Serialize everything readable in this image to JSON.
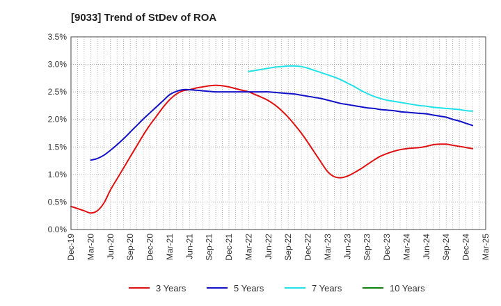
{
  "chart_data": {
    "type": "line",
    "title": "[9033]  Trend of StDev of ROA",
    "xlabel": "",
    "ylabel": "",
    "x_ticks": [
      "Dec-19",
      "Mar-20",
      "Jun-20",
      "Sep-20",
      "Dec-20",
      "Mar-21",
      "Jun-21",
      "Sep-21",
      "Dec-21",
      "Mar-22",
      "Jun-22",
      "Sep-22",
      "Dec-22",
      "Mar-23",
      "Jun-23",
      "Sep-23",
      "Dec-23",
      "Mar-24",
      "Jun-24",
      "Sep-24",
      "Dec-24",
      "Mar-25"
    ],
    "y_ticks": [
      "0.0%",
      "0.5%",
      "1.0%",
      "1.5%",
      "2.0%",
      "2.5%",
      "3.0%",
      "3.5%"
    ],
    "ylim": [
      0,
      3.5
    ],
    "grid": true,
    "legend_position": "bottom",
    "series": [
      {
        "name": "3 Years",
        "color": "#e01010",
        "points": [
          [
            "Dec-19",
            0.42
          ],
          [
            "Jan-20",
            0.38
          ],
          [
            "Feb-20",
            0.34
          ],
          [
            "Mar-20",
            0.3
          ],
          [
            "Apr-20",
            0.34
          ],
          [
            "May-20",
            0.48
          ],
          [
            "Jun-20",
            0.72
          ],
          [
            "Jul-20",
            0.92
          ],
          [
            "Aug-20",
            1.12
          ],
          [
            "Sep-20",
            1.32
          ],
          [
            "Oct-20",
            1.52
          ],
          [
            "Nov-20",
            1.72
          ],
          [
            "Dec-20",
            1.9
          ],
          [
            "Jan-21",
            2.06
          ],
          [
            "Feb-21",
            2.22
          ],
          [
            "Mar-21",
            2.36
          ],
          [
            "Apr-21",
            2.46
          ],
          [
            "May-21",
            2.52
          ],
          [
            "Jun-21",
            2.54
          ],
          [
            "Jul-21",
            2.57
          ],
          [
            "Aug-21",
            2.59
          ],
          [
            "Sep-21",
            2.61
          ],
          [
            "Oct-21",
            2.62
          ],
          [
            "Nov-21",
            2.61
          ],
          [
            "Dec-21",
            2.59
          ],
          [
            "Jan-22",
            2.56
          ],
          [
            "Feb-22",
            2.53
          ],
          [
            "Mar-22",
            2.5
          ],
          [
            "Apr-22",
            2.45
          ],
          [
            "May-22",
            2.4
          ],
          [
            "Jun-22",
            2.34
          ],
          [
            "Jul-22",
            2.26
          ],
          [
            "Aug-22",
            2.16
          ],
          [
            "Sep-22",
            2.04
          ],
          [
            "Oct-22",
            1.9
          ],
          [
            "Nov-22",
            1.75
          ],
          [
            "Dec-22",
            1.58
          ],
          [
            "Jan-23",
            1.4
          ],
          [
            "Feb-23",
            1.22
          ],
          [
            "Mar-23",
            1.05
          ],
          [
            "Apr-23",
            0.96
          ],
          [
            "May-23",
            0.94
          ],
          [
            "Jun-23",
            0.97
          ],
          [
            "Jul-23",
            1.03
          ],
          [
            "Aug-23",
            1.1
          ],
          [
            "Sep-23",
            1.18
          ],
          [
            "Oct-23",
            1.26
          ],
          [
            "Nov-23",
            1.33
          ],
          [
            "Dec-23",
            1.38
          ],
          [
            "Jan-24",
            1.42
          ],
          [
            "Feb-24",
            1.45
          ],
          [
            "Mar-24",
            1.47
          ],
          [
            "Apr-24",
            1.48
          ],
          [
            "May-24",
            1.49
          ],
          [
            "Jun-24",
            1.51
          ],
          [
            "Jul-24",
            1.54
          ],
          [
            "Aug-24",
            1.55
          ],
          [
            "Sep-24",
            1.55
          ],
          [
            "Oct-24",
            1.53
          ],
          [
            "Nov-24",
            1.51
          ],
          [
            "Dec-24",
            1.49
          ],
          [
            "Jan-25",
            1.47
          ]
        ]
      },
      {
        "name": "5 Years",
        "color": "#1010c8",
        "points": [
          [
            "Mar-20",
            1.26
          ],
          [
            "Apr-20",
            1.29
          ],
          [
            "May-20",
            1.35
          ],
          [
            "Jun-20",
            1.44
          ],
          [
            "Jul-20",
            1.54
          ],
          [
            "Aug-20",
            1.65
          ],
          [
            "Sep-20",
            1.77
          ],
          [
            "Oct-20",
            1.89
          ],
          [
            "Nov-20",
            2.01
          ],
          [
            "Dec-20",
            2.12
          ],
          [
            "Jan-21",
            2.23
          ],
          [
            "Feb-21",
            2.34
          ],
          [
            "Mar-21",
            2.45
          ],
          [
            "Apr-21",
            2.51
          ],
          [
            "May-21",
            2.54
          ],
          [
            "Jun-21",
            2.54
          ],
          [
            "Jul-21",
            2.53
          ],
          [
            "Aug-21",
            2.52
          ],
          [
            "Sep-21",
            2.51
          ],
          [
            "Oct-21",
            2.5
          ],
          [
            "Nov-21",
            2.5
          ],
          [
            "Dec-21",
            2.5
          ],
          [
            "Jan-22",
            2.5
          ],
          [
            "Feb-22",
            2.5
          ],
          [
            "Mar-22",
            2.5
          ],
          [
            "Apr-22",
            2.5
          ],
          [
            "May-22",
            2.5
          ],
          [
            "Jun-22",
            2.5
          ],
          [
            "Jul-22",
            2.49
          ],
          [
            "Aug-22",
            2.48
          ],
          [
            "Sep-22",
            2.47
          ],
          [
            "Oct-22",
            2.46
          ],
          [
            "Nov-22",
            2.44
          ],
          [
            "Dec-22",
            2.42
          ],
          [
            "Jan-23",
            2.4
          ],
          [
            "Feb-23",
            2.38
          ],
          [
            "Mar-23",
            2.35
          ],
          [
            "Apr-23",
            2.32
          ],
          [
            "May-23",
            2.29
          ],
          [
            "Jun-23",
            2.27
          ],
          [
            "Jul-23",
            2.25
          ],
          [
            "Aug-23",
            2.23
          ],
          [
            "Sep-23",
            2.21
          ],
          [
            "Oct-23",
            2.2
          ],
          [
            "Nov-23",
            2.18
          ],
          [
            "Dec-23",
            2.17
          ],
          [
            "Jan-24",
            2.16
          ],
          [
            "Feb-24",
            2.14
          ],
          [
            "Mar-24",
            2.13
          ],
          [
            "Apr-24",
            2.12
          ],
          [
            "May-24",
            2.11
          ],
          [
            "Jun-24",
            2.1
          ],
          [
            "Jul-24",
            2.08
          ],
          [
            "Aug-24",
            2.06
          ],
          [
            "Sep-24",
            2.04
          ],
          [
            "Oct-24",
            2.0
          ],
          [
            "Nov-24",
            1.97
          ],
          [
            "Dec-24",
            1.93
          ],
          [
            "Jan-25",
            1.89
          ]
        ]
      },
      {
        "name": "7 Years",
        "color": "#20e0e8",
        "points": [
          [
            "Mar-22",
            2.87
          ],
          [
            "Apr-22",
            2.89
          ],
          [
            "May-22",
            2.91
          ],
          [
            "Jun-22",
            2.93
          ],
          [
            "Jul-22",
            2.95
          ],
          [
            "Aug-22",
            2.96
          ],
          [
            "Sep-22",
            2.97
          ],
          [
            "Oct-22",
            2.97
          ],
          [
            "Nov-22",
            2.96
          ],
          [
            "Dec-22",
            2.93
          ],
          [
            "Jan-23",
            2.89
          ],
          [
            "Feb-23",
            2.85
          ],
          [
            "Mar-23",
            2.81
          ],
          [
            "Apr-23",
            2.77
          ],
          [
            "May-23",
            2.72
          ],
          [
            "Jun-23",
            2.66
          ],
          [
            "Jul-23",
            2.6
          ],
          [
            "Aug-23",
            2.53
          ],
          [
            "Sep-23",
            2.47
          ],
          [
            "Oct-23",
            2.42
          ],
          [
            "Nov-23",
            2.38
          ],
          [
            "Dec-23",
            2.35
          ],
          [
            "Jan-24",
            2.33
          ],
          [
            "Feb-24",
            2.31
          ],
          [
            "Mar-24",
            2.29
          ],
          [
            "Apr-24",
            2.27
          ],
          [
            "May-24",
            2.25
          ],
          [
            "Jun-24",
            2.24
          ],
          [
            "Jul-24",
            2.22
          ],
          [
            "Aug-24",
            2.21
          ],
          [
            "Sep-24",
            2.2
          ],
          [
            "Oct-24",
            2.19
          ],
          [
            "Nov-24",
            2.18
          ],
          [
            "Dec-24",
            2.16
          ],
          [
            "Jan-25",
            2.15
          ]
        ]
      },
      {
        "name": "10 Years",
        "color": "#108010",
        "points": []
      }
    ]
  }
}
